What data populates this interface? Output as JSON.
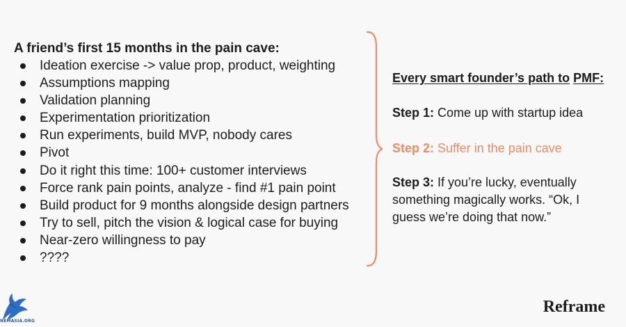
{
  "left": {
    "title": "A friend’s first 15 months in the pain cave:",
    "items": [
      "Ideation exercise -> value prop, product, weighting",
      "Assumptions mapping",
      "Validation planning",
      "Experimentation prioritization",
      "Run experiments, build MVP, nobody cares",
      "Pivot",
      "Do it right this time: 100+ customer interviews",
      "Force rank pain points, analyze - find #1 pain point",
      "Build product for 9 months alongside design partners",
      "Try to sell, pitch the vision & logical case for buying",
      "Near-zero willingness to pay",
      "????"
    ]
  },
  "right": {
    "title_pre": "Every smart founder’s path to",
    "title_link": "PMF:",
    "steps": [
      {
        "label": "Step 1:",
        "text": "Come up with startup idea"
      },
      {
        "label": "Step 2:",
        "text": "Suffer in the pain cave"
      },
      {
        "label": "Step 3:",
        "text": "If you’re lucky, eventually something magically works. “Ok, I guess we’re doing that now.”"
      }
    ]
  },
  "colors": {
    "highlight": "#f08a64",
    "text": "#1c1c1c",
    "background": "#f8f8f8",
    "brace": "#f08a64"
  },
  "watermark": {
    "icon": "eagle-logo-icon",
    "caption": "NEMASIA.ORG"
  },
  "brand": "Reframe"
}
